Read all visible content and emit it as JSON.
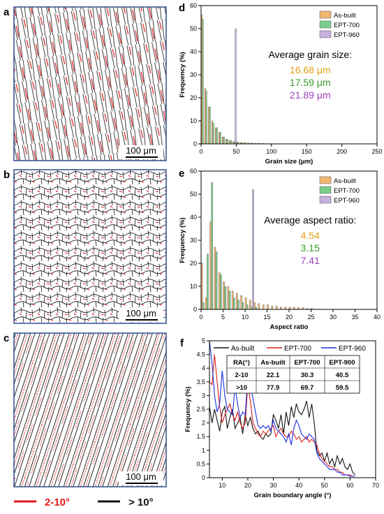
{
  "colors": {
    "as_built": "#f0b771",
    "ept700": "#7bcf8e",
    "ept960": "#c7b2dc",
    "grain_red": "#e01818",
    "grain_black": "#111111",
    "frame": "#2f4f8f",
    "avg_orange": "#e0a018",
    "avg_green": "#3a9a2a",
    "avg_purple": "#9a3fb8"
  },
  "panel_labels": {
    "a": "a",
    "b": "b",
    "c": "c",
    "d": "d",
    "e": "e",
    "f": "f"
  },
  "scalebar_label": "100 μm",
  "legend_bottom": {
    "red_label": "2-10°",
    "black_label": "> 10°"
  },
  "chart_data": [
    {
      "id": "d",
      "type": "bar",
      "xlabel": "Grain size (μm)",
      "ylabel": "Frequency (%)",
      "xlim": [
        0,
        250
      ],
      "ylim": [
        0,
        60
      ],
      "xticks": [
        "0",
        "50",
        "100",
        "150",
        "200",
        "250"
      ],
      "yticks": [
        "0",
        "10",
        "20",
        "30",
        "40",
        "50",
        "60"
      ],
      "bin_width": 5,
      "series": [
        {
          "name": "As-built",
          "colorKey": "as_built",
          "x": [
            2.5,
            7.5,
            12.5,
            17.5,
            22.5,
            27.5,
            32.5,
            37.5,
            42.5,
            47.5,
            52.5,
            57.5,
            62.5,
            67.5,
            72.5,
            77.5,
            82.5,
            87.5,
            92.5,
            97.5,
            102.5
          ],
          "values": [
            56,
            24,
            16,
            10,
            7,
            5,
            3,
            2,
            1.5,
            1,
            0.8,
            0.5,
            0.5,
            0.3,
            0.3,
            0.2,
            0.2,
            0.1,
            0.1,
            0.1,
            0.1
          ]
        },
        {
          "name": "EPT-700",
          "colorKey": "ept700",
          "x": [
            2.5,
            7.5,
            12.5,
            17.5,
            22.5,
            27.5,
            32.5,
            37.5,
            42.5,
            47.5,
            52.5,
            57.5,
            62.5,
            67.5,
            72.5,
            77.5,
            82.5,
            87.5,
            92.5,
            97.5,
            102.5
          ],
          "values": [
            54,
            23,
            16,
            9,
            7,
            5,
            3,
            2,
            1.5,
            1,
            0.8,
            0.6,
            0.5,
            0.4,
            0.3,
            0.2,
            0.2,
            0.2,
            0.1,
            0.1,
            0.1
          ]
        },
        {
          "name": "EPT-960",
          "colorKey": "ept960",
          "x": [
            47.5
          ],
          "values": [
            50
          ]
        }
      ],
      "annotation": {
        "title": "Average grain size:",
        "values": [
          {
            "text": "16.68 μm",
            "colorKey": "avg_orange"
          },
          {
            "text": "17.59 μm",
            "colorKey": "avg_green"
          },
          {
            "text": "21.89 μm",
            "colorKey": "avg_purple"
          }
        ]
      }
    },
    {
      "id": "e",
      "type": "bar",
      "xlabel": "Aspect ratio",
      "ylabel": "Frequency (%)",
      "xlim": [
        0,
        40
      ],
      "ylim": [
        0,
        60
      ],
      "xticks": [
        "0",
        "5",
        "10",
        "15",
        "20",
        "25",
        "30",
        "35",
        "40"
      ],
      "yticks": [
        "0",
        "10",
        "20",
        "30",
        "40",
        "50",
        "60"
      ],
      "bin_width": 1,
      "series": [
        {
          "name": "As-built",
          "colorKey": "as_built",
          "x": [
            0.5,
            1.5,
            2.5,
            3.5,
            4.5,
            5.5,
            6.5,
            7.5,
            8.5,
            9.5,
            10.5,
            11.5,
            12.5,
            13.5,
            14.5,
            15.5,
            16.5,
            17.5,
            18.5,
            19.5,
            20.5,
            21.5,
            22.5,
            23.5,
            24.5,
            25.5
          ],
          "values": [
            20,
            5,
            38,
            27,
            16,
            12,
            10,
            8,
            7,
            6,
            5,
            4,
            3,
            2.5,
            2,
            2,
            1.5,
            1.5,
            1,
            1,
            1,
            1,
            0.8,
            0.8,
            0.5,
            0.5
          ]
        },
        {
          "name": "EPT-700",
          "colorKey": "ept700",
          "x": [
            0.5,
            1.5,
            2.5,
            3.5,
            4.5,
            5.5,
            6.5,
            7.5,
            8.5,
            9.5,
            10.5,
            11.5,
            12.5
          ],
          "values": [
            3,
            24,
            55,
            25,
            15,
            10,
            8,
            5,
            4,
            3,
            2,
            1,
            1
          ]
        },
        {
          "name": "EPT-960",
          "colorKey": "ept960",
          "x": [
            11.5
          ],
          "values": [
            52
          ]
        }
      ],
      "annotation": {
        "title": "Average aspect ratio:",
        "values": [
          {
            "text": "4.54",
            "colorKey": "avg_orange"
          },
          {
            "text": "3.15",
            "colorKey": "avg_green"
          },
          {
            "text": "7.41",
            "colorKey": "avg_purple"
          }
        ]
      }
    },
    {
      "id": "f",
      "type": "line",
      "xlabel": "Grain boundary angle (°)",
      "ylabel": "Frequency (%)",
      "xlim": [
        5,
        70
      ],
      "ylim": [
        0,
        5
      ],
      "xticks": [
        "10",
        "20",
        "30",
        "40",
        "50",
        "60",
        "70"
      ],
      "yticks": [
        "0",
        "0.5",
        "1",
        "1.5",
        "2",
        "2.5",
        "3",
        "3.5",
        "4",
        "4.5",
        "5"
      ],
      "series": [
        {
          "name": "As-built",
          "color": "#111111",
          "x": [
            5,
            6,
            7,
            8,
            9,
            10,
            11,
            12,
            13,
            14,
            15,
            16,
            17,
            18,
            19,
            20,
            21,
            22,
            23,
            24,
            25,
            26,
            27,
            28,
            29,
            30,
            31,
            32,
            33,
            34,
            35,
            36,
            37,
            38,
            39,
            40,
            41,
            42,
            43,
            44,
            45,
            46,
            47,
            48,
            49,
            50,
            51,
            52,
            53,
            54,
            55,
            56,
            57,
            58,
            59,
            60,
            61,
            62
          ],
          "y": [
            2.6,
            2.0,
            2.5,
            2.1,
            1.7,
            2.4,
            2.6,
            1.8,
            2.2,
            2.5,
            1.8,
            2.0,
            2.2,
            1.6,
            2.3,
            1.9,
            2.2,
            1.8,
            1.6,
            1.7,
            1.5,
            1.4,
            1.6,
            1.5,
            1.6,
            2.3,
            2.1,
            1.8,
            2.3,
            1.6,
            2.4,
            1.9,
            2.6,
            2.2,
            2.7,
            2.4,
            2.3,
            2.5,
            2.8,
            2.2,
            2.7,
            2.0,
            1.0,
            0.8,
            0.9,
            0.6,
            0.9,
            0.5,
            0.7,
            0.4,
            0.8,
            0.5,
            0.7,
            0.4,
            0.3,
            0.5,
            0.2,
            0.1
          ]
        },
        {
          "name": "EPT-700",
          "color": "#e02020",
          "x": [
            5,
            6,
            7,
            8,
            9,
            10,
            11,
            12,
            13,
            14,
            15,
            16,
            17,
            18,
            19,
            20,
            21,
            22,
            23,
            24,
            25,
            26,
            27,
            28,
            29,
            30,
            31,
            32,
            33,
            34,
            35,
            36,
            37,
            38,
            39,
            40,
            41,
            42,
            43,
            44,
            45,
            46,
            47,
            48,
            49,
            50,
            51,
            52,
            53,
            54,
            55,
            56,
            57,
            58,
            59,
            60,
            61,
            62
          ],
          "y": [
            3.5,
            3.4,
            4.5,
            3.5,
            2.6,
            2.0,
            2.3,
            2.5,
            2.7,
            2.3,
            2.1,
            2.4,
            2.0,
            1.8,
            2.0,
            3.4,
            2.8,
            2.0,
            1.8,
            1.6,
            1.5,
            1.7,
            1.6,
            1.7,
            1.8,
            1.9,
            1.5,
            1.7,
            1.8,
            1.6,
            1.5,
            1.5,
            1.7,
            1.6,
            1.4,
            1.5,
            1.3,
            1.4,
            1.5,
            1.3,
            1.4,
            1.3,
            1.2,
            0.9,
            0.7,
            0.6,
            0.5,
            0.4,
            0.4,
            0.3,
            0.3,
            0.2,
            0.2,
            0.1,
            0.1,
            0.1,
            0.05,
            0.05
          ]
        },
        {
          "name": "EPT-960",
          "color": "#1a2fe0",
          "x": [
            5,
            6,
            7,
            8,
            9,
            10,
            11,
            12,
            13,
            14,
            15,
            16,
            17,
            18,
            19,
            20,
            21,
            22,
            23,
            24,
            25,
            26,
            27,
            28,
            29,
            30,
            31,
            32,
            33,
            34,
            35,
            36,
            37,
            38,
            39,
            40,
            41,
            42,
            43,
            44,
            45,
            46,
            47,
            48,
            49,
            50,
            51,
            52,
            53,
            54,
            55,
            56,
            57,
            58,
            59,
            60,
            61,
            62
          ],
          "y": [
            5.0,
            4.2,
            3.0,
            2.4,
            2.7,
            3.9,
            3.0,
            2.5,
            2.4,
            2.3,
            3.3,
            2.7,
            2.2,
            2.4,
            2.3,
            3.7,
            3.4,
            2.9,
            2.4,
            1.9,
            1.8,
            1.9,
            1.8,
            1.9,
            1.7,
            2.1,
            1.8,
            1.7,
            1.6,
            1.5,
            1.3,
            1.6,
            1.2,
            1.8,
            2.1,
            1.9,
            1.6,
            1.5,
            1.4,
            1.6,
            1.5,
            1.4,
            0.9,
            0.7,
            0.6,
            0.5,
            0.4,
            0.3,
            0.3,
            0.3,
            0.2,
            0.2,
            0.1,
            0.1,
            0.1,
            0.05,
            0.05,
            0.05
          ]
        }
      ],
      "table": {
        "headers": [
          "RA(°)",
          "As-built",
          "EPT-700",
          "EPT-900"
        ],
        "rows": [
          [
            "2-10",
            "22.1",
            "30.3",
            "40.5"
          ],
          [
            ">10",
            "77.9",
            "69.7",
            "59.5"
          ]
        ]
      }
    }
  ]
}
